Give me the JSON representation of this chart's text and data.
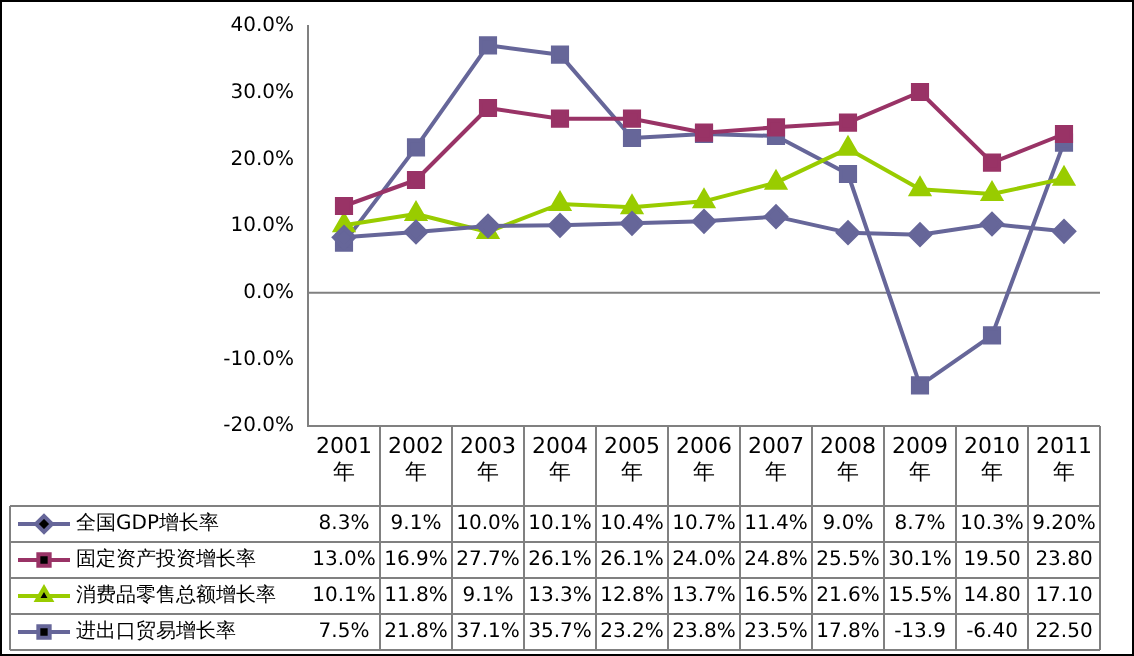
{
  "chart_data": {
    "type": "line",
    "categories": [
      "2001年",
      "2002年",
      "2003年",
      "2004年",
      "2005年",
      "2006年",
      "2007年",
      "2008年",
      "2009年",
      "2010年",
      "2011年"
    ],
    "series": [
      {
        "name": "全国GDP增长率",
        "color": "#666699",
        "marker": "diamond",
        "values": [
          8.3,
          9.1,
          10.0,
          10.1,
          10.4,
          10.7,
          11.4,
          9.0,
          8.7,
          10.3,
          9.2
        ],
        "value_labels": [
          "8.3%",
          "9.1%",
          "10.0%",
          "10.1%",
          "10.4%",
          "10.7%",
          "11.4%",
          "9.0%",
          "8.7%",
          "10.3%",
          "9.20%"
        ]
      },
      {
        "name": "固定资产投资增长率",
        "color": "#993366",
        "marker": "square",
        "values": [
          13.0,
          16.9,
          27.7,
          26.1,
          26.1,
          24.0,
          24.8,
          25.5,
          30.1,
          19.5,
          23.8
        ],
        "value_labels": [
          "13.0%",
          "16.9%",
          "27.7%",
          "26.1%",
          "26.1%",
          "24.0%",
          "24.8%",
          "25.5%",
          "30.1%",
          "19.50",
          "23.80"
        ]
      },
      {
        "name": "消费品零售总额增长率",
        "color": "#99cc00",
        "marker": "triangle",
        "values": [
          10.1,
          11.8,
          9.1,
          13.3,
          12.8,
          13.7,
          16.5,
          21.6,
          15.5,
          14.8,
          17.1
        ],
        "value_labels": [
          "10.1%",
          "11.8%",
          "9.1%",
          "13.3%",
          "12.8%",
          "13.7%",
          "16.5%",
          "21.6%",
          "15.5%",
          "14.80",
          "17.10"
        ]
      },
      {
        "name": "进出口贸易增长率",
        "color": "#666699",
        "marker": "square",
        "values": [
          7.5,
          21.8,
          37.1,
          35.7,
          23.2,
          23.8,
          23.5,
          17.8,
          -13.9,
          -6.4,
          22.5
        ],
        "value_labels": [
          "7.5%",
          "21.8%",
          "37.1%",
          "35.7%",
          "23.2%",
          "23.8%",
          "23.5%",
          "17.8%",
          "-13.9",
          "-6.40",
          "22.50"
        ]
      }
    ],
    "ylim": [
      -20,
      40
    ],
    "yticks": [
      {
        "value": -20,
        "label": "-20.0%"
      },
      {
        "value": -10,
        "label": "-10.0%"
      },
      {
        "value": 0,
        "label": "0.0%"
      },
      {
        "value": 10,
        "label": "10.0%"
      },
      {
        "value": 20,
        "label": "20.0%"
      },
      {
        "value": 30,
        "label": "30.0%"
      },
      {
        "value": 40,
        "label": "40.0%"
      }
    ],
    "ref_lines": [
      {
        "axis": "y",
        "value": 0,
        "color": "#808080"
      }
    ],
    "grid": false,
    "legend": "bottom"
  }
}
